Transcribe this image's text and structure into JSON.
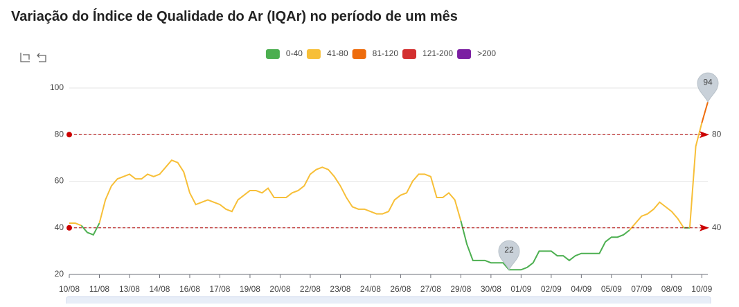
{
  "chart_data": {
    "type": "line",
    "title": "Variação do Índice de Qualidade do Ar (IQAr) no período de um mês",
    "categories": [
      "10/08",
      null,
      null,
      null,
      null,
      "11/08",
      null,
      null,
      null,
      null,
      "13/08",
      null,
      null,
      null,
      null,
      "14/08",
      null,
      null,
      null,
      null,
      "16/08",
      null,
      null,
      null,
      null,
      "17/08",
      null,
      null,
      null,
      null,
      "19/08",
      null,
      null,
      null,
      null,
      "20/08",
      null,
      null,
      null,
      null,
      "22/08",
      null,
      null,
      null,
      null,
      "23/08",
      null,
      null,
      null,
      null,
      "24/08",
      null,
      null,
      null,
      null,
      "26/08",
      null,
      null,
      null,
      null,
      "27/08",
      null,
      null,
      null,
      null,
      "29/08",
      null,
      null,
      null,
      null,
      "30/08",
      null,
      null,
      null,
      null,
      "01/09",
      null,
      null,
      null,
      null,
      "02/09",
      null,
      null,
      null,
      null,
      "04/09",
      null,
      null,
      null,
      null,
      "05/09",
      null,
      null,
      null,
      null,
      "07/09",
      null,
      null,
      null,
      null,
      "08/09",
      null,
      null,
      null,
      null,
      "10/09",
      null
    ],
    "values": [
      42,
      42,
      41,
      38,
      37,
      42,
      52,
      58,
      61,
      62,
      63,
      61,
      61,
      63,
      62,
      63,
      66,
      69,
      68,
      64,
      55,
      50,
      51,
      52,
      51,
      50,
      48,
      47,
      52,
      54,
      56,
      56,
      55,
      57,
      53,
      53,
      53,
      55,
      56,
      58,
      63,
      65,
      66,
      65,
      62,
      58,
      53,
      49,
      48,
      48,
      47,
      46,
      46,
      47,
      52,
      54,
      55,
      60,
      63,
      63,
      62,
      53,
      53,
      55,
      52,
      43,
      33,
      26,
      26,
      26,
      25,
      25,
      25,
      22,
      22,
      22,
      23,
      25,
      30,
      30,
      30,
      28,
      28,
      26,
      28,
      29,
      29,
      29,
      29,
      34,
      36,
      36,
      37,
      39,
      42,
      45,
      46,
      48,
      51,
      49,
      47,
      44,
      40,
      40,
      75,
      85,
      94
    ],
    "ylim": [
      20,
      100
    ],
    "yticks": [
      20,
      40,
      60,
      80,
      100
    ],
    "grid": true,
    "visual_map": [
      {
        "label": "0-40",
        "color": "#4caf50",
        "range": [
          0,
          40
        ]
      },
      {
        "label": "41-80",
        "color": "#f7bf38",
        "range": [
          41,
          80
        ]
      },
      {
        "label": "81-120",
        "color": "#ee6c0c",
        "range": [
          81,
          120
        ]
      },
      {
        "label": "121-200",
        "color": "#d32f2f",
        "range": [
          121,
          200
        ]
      },
      {
        "label": ">200",
        "color": "#7b1fa2",
        "range": [
          201,
          500
        ]
      }
    ],
    "mark_lines": [
      40,
      80
    ],
    "mark_points": [
      94,
      22
    ]
  }
}
